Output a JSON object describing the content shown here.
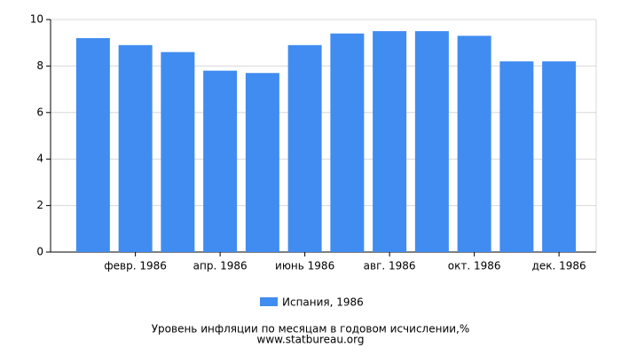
{
  "chart_data": {
    "type": "bar",
    "title": "Уровень инфляции по месяцам в годовом исчислении,%",
    "source": "www.statbureau.org",
    "categories": [
      null,
      "февр. 1986",
      null,
      "апр. 1986",
      null,
      "июнь 1986",
      null,
      "авг. 1986",
      null,
      "окт. 1986",
      null,
      "дек. 1986"
    ],
    "series": [
      {
        "name": "Испания, 1986",
        "color": "#418cf0",
        "values": [
          9.2,
          8.9,
          8.6,
          7.8,
          7.7,
          8.9,
          9.4,
          9.5,
          9.5,
          9.3,
          8.2,
          8.2
        ]
      }
    ],
    "ylim": [
      0,
      10
    ],
    "yticks": [
      0,
      2,
      4,
      6,
      8,
      10
    ],
    "grid": true
  }
}
